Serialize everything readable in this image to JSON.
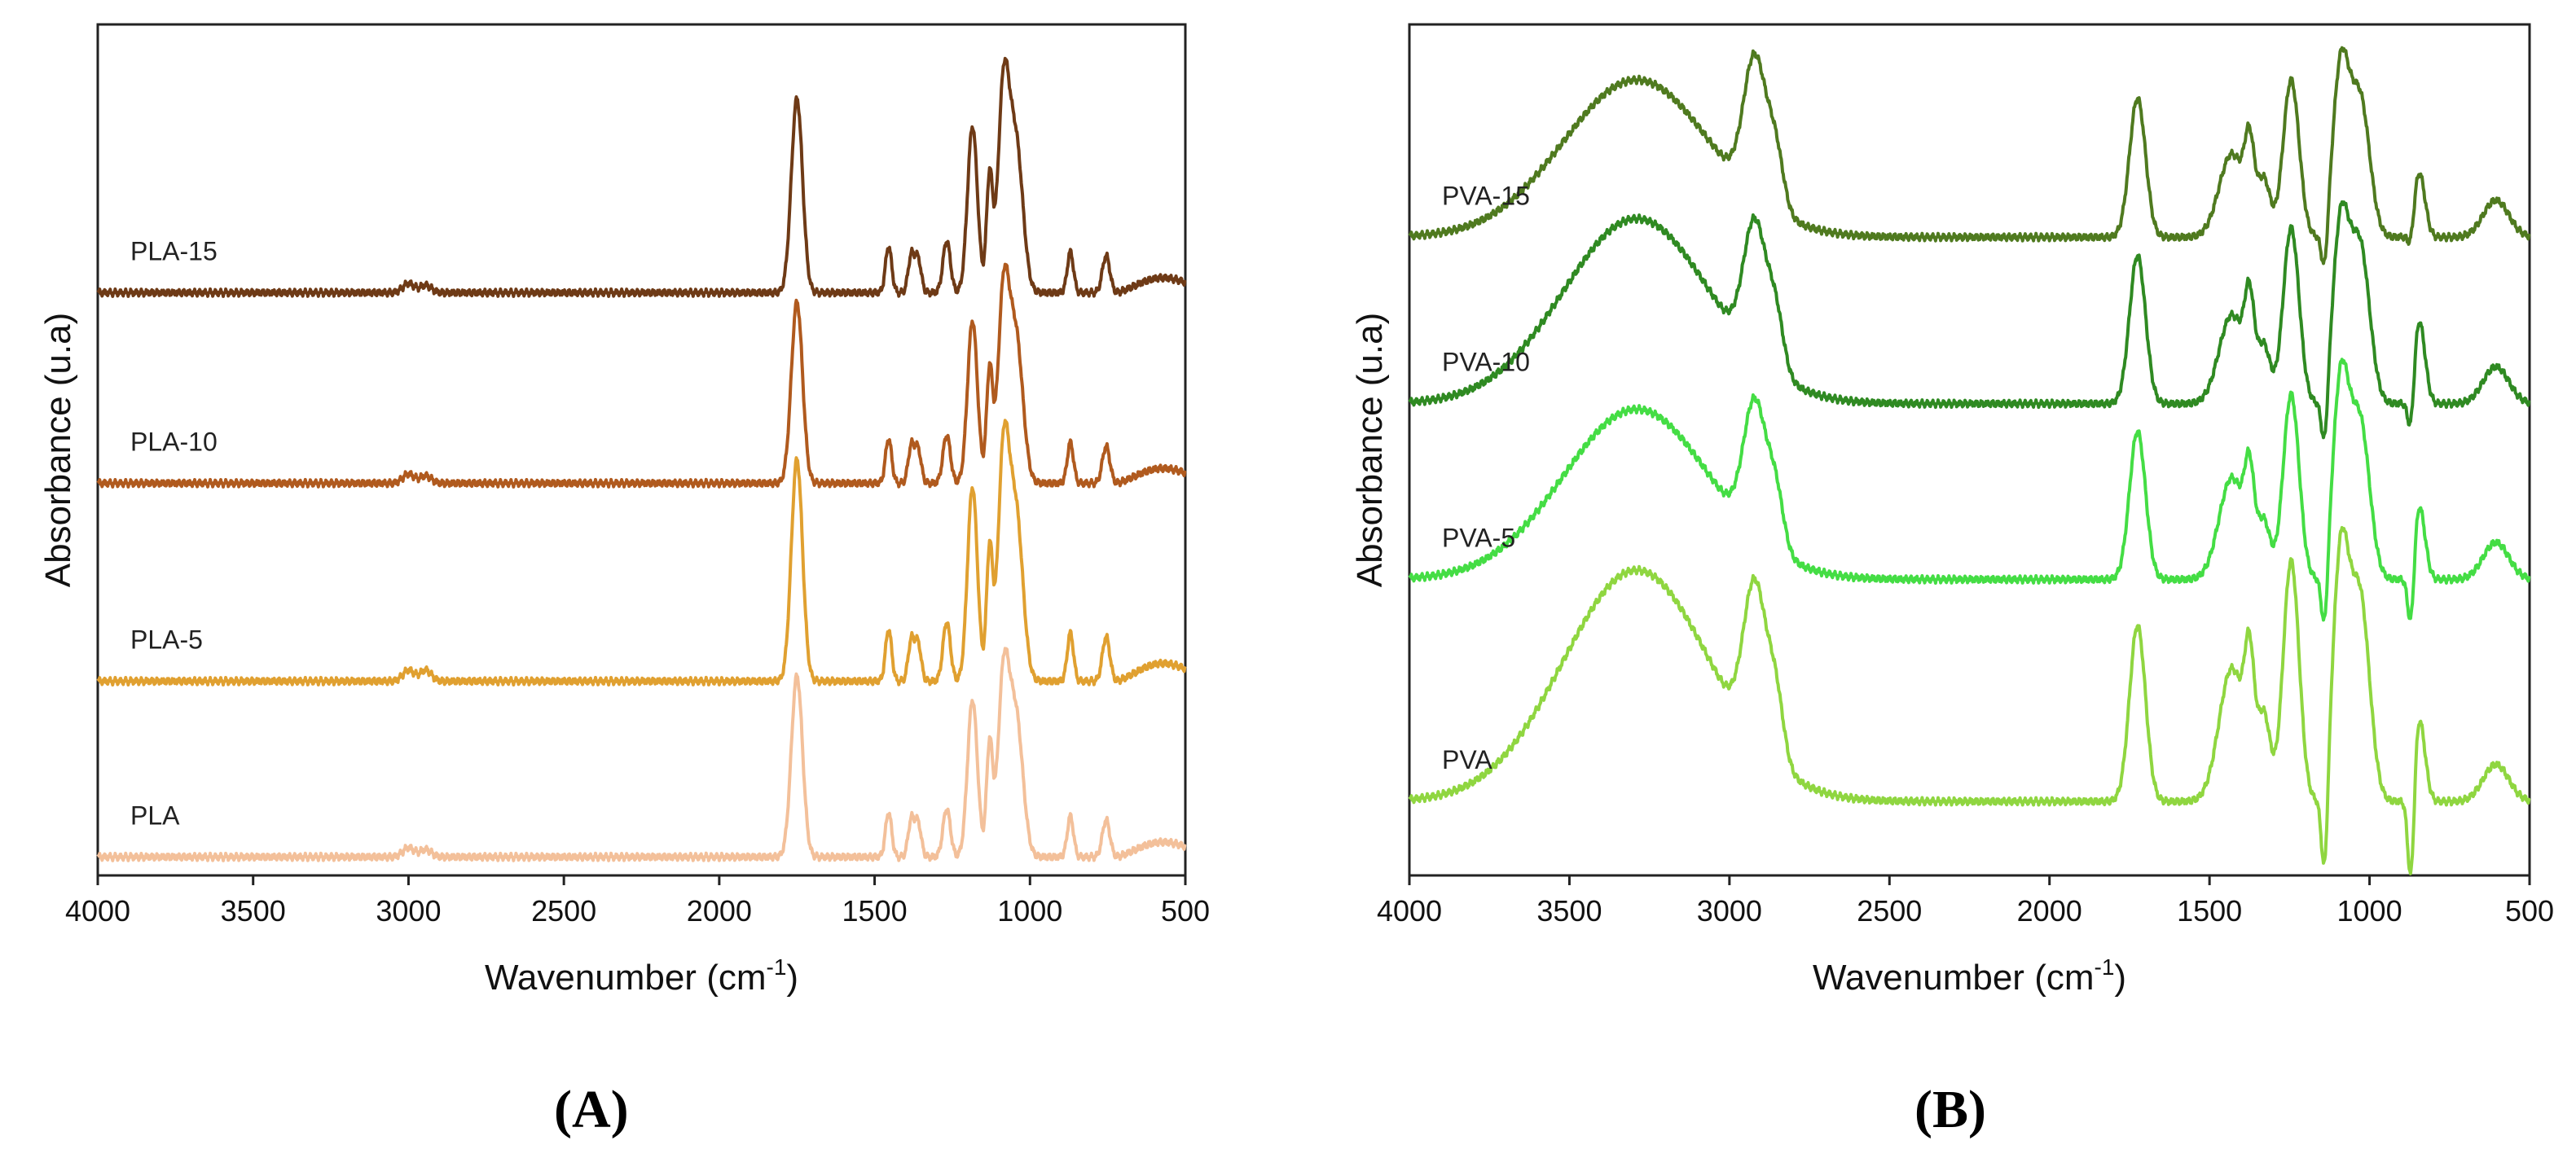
{
  "chart_data": [
    {
      "panel_label": "A",
      "type": "line",
      "title": "",
      "xlabel": "Wavenumber",
      "xlabel_unit_base": "(cm",
      "xlabel_unit_sup": "-1",
      "xlabel_unit_close": ")",
      "ylabel": "Absorbance (u.a)",
      "xlim": [
        4000,
        500
      ],
      "x_reversed": true,
      "x_ticks": [
        "4000",
        "3500",
        "3000",
        "2500",
        "2000",
        "1500",
        "1000",
        "500"
      ],
      "y_ticks_shown": false,
      "grid": false,
      "legend": "inline labels at left of each trace",
      "series": [
        {
          "name": "PLA-15",
          "color": "#6e3a16",
          "baseline": 3.15,
          "peaks": [
            [
              1750,
              1.05,
              18
            ],
            [
              1455,
              0.25,
              10
            ],
            [
              1382,
              0.2,
              10
            ],
            [
              1360,
              0.18,
              10
            ],
            [
              1268,
              0.28,
              12
            ],
            [
              1185,
              0.9,
              16
            ],
            [
              1130,
              0.62,
              10
            ],
            [
              1085,
              1.08,
              18
            ],
            [
              1045,
              0.8,
              22
            ],
            [
              870,
              0.22,
              10
            ],
            [
              755,
              0.2,
              12
            ],
            [
              3000,
              0.05,
              18
            ],
            [
              2945,
              0.04,
              18
            ]
          ],
          "tail": 0.15
        },
        {
          "name": "PLA-10",
          "color": "#b05a1e",
          "baseline": 2.12,
          "peaks": [
            [
              1750,
              0.98,
              18
            ],
            [
              1455,
              0.24,
              10
            ],
            [
              1382,
              0.2,
              10
            ],
            [
              1360,
              0.18,
              10
            ],
            [
              1268,
              0.26,
              12
            ],
            [
              1185,
              0.88,
              16
            ],
            [
              1130,
              0.6,
              10
            ],
            [
              1085,
              1.0,
              18
            ],
            [
              1045,
              0.78,
              22
            ],
            [
              870,
              0.22,
              10
            ],
            [
              755,
              0.2,
              12
            ],
            [
              3000,
              0.05,
              18
            ],
            [
              2945,
              0.04,
              18
            ]
          ],
          "tail": 0.15
        },
        {
          "name": "PLA-5",
          "color": "#e0a030",
          "baseline": 1.05,
          "peaks": [
            [
              1750,
              1.2,
              18
            ],
            [
              1455,
              0.28,
              10
            ],
            [
              1382,
              0.22,
              10
            ],
            [
              1360,
              0.2,
              10
            ],
            [
              1268,
              0.32,
              12
            ],
            [
              1185,
              1.05,
              16
            ],
            [
              1130,
              0.7,
              10
            ],
            [
              1085,
              1.2,
              18
            ],
            [
              1045,
              0.9,
              22
            ],
            [
              870,
              0.26,
              10
            ],
            [
              755,
              0.24,
              12
            ],
            [
              3000,
              0.06,
              18
            ],
            [
              2945,
              0.06,
              18
            ]
          ],
          "tail": 0.18
        },
        {
          "name": "PLA",
          "color": "#f3c09a",
          "baseline": 0.1,
          "peaks": [
            [
              1750,
              0.98,
              18
            ],
            [
              1455,
              0.24,
              10
            ],
            [
              1382,
              0.2,
              10
            ],
            [
              1360,
              0.18,
              10
            ],
            [
              1268,
              0.26,
              12
            ],
            [
              1185,
              0.85,
              16
            ],
            [
              1130,
              0.6,
              10
            ],
            [
              1085,
              0.95,
              18
            ],
            [
              1045,
              0.75,
              22
            ],
            [
              870,
              0.22,
              10
            ],
            [
              755,
              0.2,
              12
            ],
            [
              3000,
              0.05,
              18
            ],
            [
              2945,
              0.04,
              18
            ]
          ],
          "tail": 0.15
        }
      ],
      "ylim": [
        0,
        4.6
      ]
    },
    {
      "panel_label": "B",
      "type": "line",
      "title": "",
      "xlabel": "Wavenumber",
      "xlabel_unit_base": "(cm",
      "xlabel_unit_sup": "-1",
      "xlabel_unit_close": ")",
      "ylabel": "Absorbance (u.a)",
      "xlim": [
        4000,
        500
      ],
      "x_reversed": true,
      "x_ticks": [
        "4000",
        "3500",
        "3000",
        "2500",
        "2000",
        "1500",
        "1000",
        "500"
      ],
      "y_ticks_shown": false,
      "grid": false,
      "legend": "inline labels at left of each trace",
      "series": [
        {
          "name": "PVA-15",
          "color": "#4f7a1f",
          "baseline": 3.45,
          "peaks": [
            [
              3290,
              0.85,
              230
            ],
            [
              2920,
              0.75,
              35
            ],
            [
              2855,
              0.3,
              25
            ],
            [
              1725,
              0.75,
              25
            ],
            [
              1430,
              0.45,
              40
            ],
            [
              1375,
              0.4,
              15
            ],
            [
              1330,
              0.3,
              20
            ],
            [
              1245,
              0.85,
              25
            ],
            [
              1090,
              0.9,
              25
            ],
            [
              1030,
              0.75,
              30
            ],
            [
              845,
              0.35,
              18
            ],
            [
              605,
              0.2,
              40
            ]
          ],
          "dips": [
            [
              1140,
              0.25,
              10
            ],
            [
              870,
              0.12,
              10
            ]
          ]
        },
        {
          "name": "PVA-10",
          "color": "#2f8a22",
          "baseline": 2.55,
          "peaks": [
            [
              3290,
              1.0,
              230
            ],
            [
              2920,
              0.72,
              35
            ],
            [
              2855,
              0.3,
              25
            ],
            [
              1725,
              0.8,
              25
            ],
            [
              1430,
              0.48,
              40
            ],
            [
              1375,
              0.45,
              15
            ],
            [
              1330,
              0.3,
              20
            ],
            [
              1245,
              0.95,
              25
            ],
            [
              1090,
              0.95,
              25
            ],
            [
              1030,
              0.85,
              30
            ],
            [
              845,
              0.45,
              18
            ],
            [
              605,
              0.2,
              40
            ]
          ],
          "dips": [
            [
              1140,
              0.3,
              10
            ],
            [
              870,
              0.25,
              10
            ]
          ]
        },
        {
          "name": "PVA-5",
          "color": "#44dd44",
          "baseline": 1.6,
          "peaks": [
            [
              3290,
              0.92,
              230
            ],
            [
              2920,
              0.72,
              35
            ],
            [
              2855,
              0.3,
              25
            ],
            [
              1725,
              0.8,
              25
            ],
            [
              1430,
              0.55,
              40
            ],
            [
              1375,
              0.45,
              15
            ],
            [
              1330,
              0.3,
              20
            ],
            [
              1245,
              1.0,
              25
            ],
            [
              1090,
              1.05,
              25
            ],
            [
              1030,
              0.85,
              30
            ],
            [
              845,
              0.4,
              18
            ],
            [
              605,
              0.2,
              40
            ]
          ],
          "dips": [
            [
              1140,
              0.35,
              10
            ],
            [
              870,
              0.35,
              10
            ]
          ]
        },
        {
          "name": "PVA",
          "color": "#8fd640",
          "baseline": 0.4,
          "peaks": [
            [
              3290,
              1.25,
              230
            ],
            [
              2920,
              0.85,
              35
            ],
            [
              2855,
              0.35,
              25
            ],
            [
              1725,
              0.95,
              25
            ],
            [
              1430,
              0.72,
              40
            ],
            [
              1375,
              0.6,
              15
            ],
            [
              1330,
              0.45,
              20
            ],
            [
              1245,
              1.3,
              25
            ],
            [
              1090,
              1.3,
              25
            ],
            [
              1030,
              1.1,
              30
            ],
            [
              845,
              0.45,
              18
            ],
            [
              605,
              0.2,
              40
            ]
          ],
          "dips": [
            [
              1140,
              0.5,
              10
            ],
            [
              870,
              0.55,
              10
            ]
          ]
        }
      ],
      "ylim": [
        0,
        4.6
      ]
    }
  ]
}
